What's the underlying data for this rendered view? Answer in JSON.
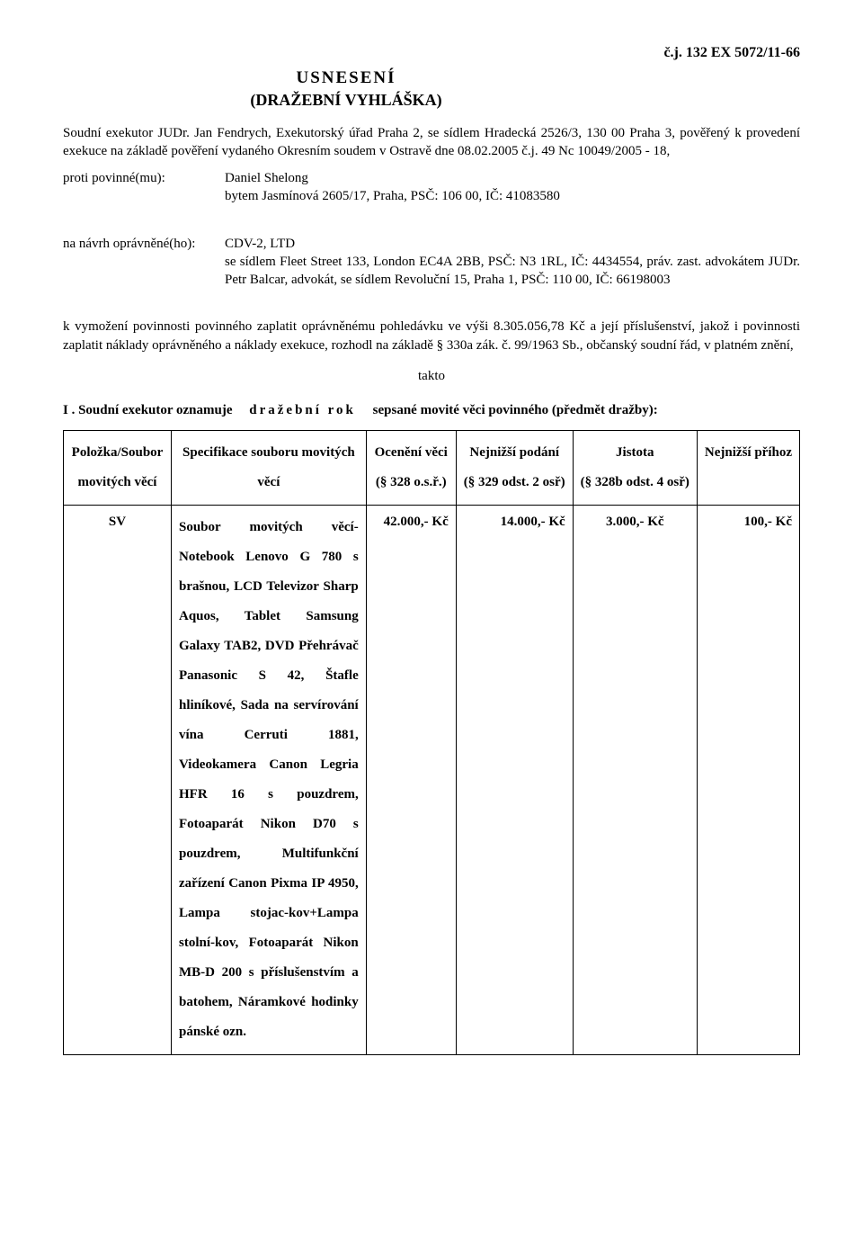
{
  "caseNumber": "č.j. 132 EX 5072/11-66",
  "titleMain": "USNESENÍ",
  "titleSub": "(DRAŽEBNÍ VYHLÁŠKA)",
  "introPara": "Soudní exekutor JUDr. Jan Fendrych, Exekutorský úřad Praha 2, se sídlem Hradecká 2526/3, 130 00 Praha 3, pověřený k provedení exekuce na základě pověření vydaného Okresním soudem v Ostravě dne 08.02.2005 č.j. 49 Nc 10049/2005 - 18,",
  "obligLabel": "proti povinné(mu):",
  "obligValue": "Daniel Shelong\nbytem Jasmínová 2605/17, Praha, PSČ: 106 00, IČ: 41083580",
  "credLabel": "na návrh oprávněné(ho):",
  "credValue": "CDV-2, LTD\nse sídlem Fleet Street 133, London EC4A 2BB, PSČ: N3 1RL, IČ: 4434554, práv. zast. advokátem JUDr. Petr Balcar, advokát, se sídlem Revoluční 15, Praha 1, PSČ: 110 00, IČ: 66198003",
  "claimPara": "k vymožení povinnosti povinného zaplatit oprávněnému pohledávku ve výši 8.305.056,78 Kč a její příslušenství, jakož i povinnosti zaplatit náklady oprávněného a náklady exekuce, rozhodl na základě            § 330a zák. č. 99/1963 Sb., občanský soudní řád, v platném znění,",
  "takto": "takto",
  "sectionI_prefix": "I . Soudní exekutor oznamuje",
  "sectionI_spaced": "dražební rok",
  "sectionI_suffix": "sepsané movité věci povinného (předmět dražby):",
  "tableHeaders": {
    "col1": "Položka/Soubor movitých věcí",
    "col2": "Specifikace souboru movitých věcí",
    "col3": "Ocenění věci\n(§ 328 o.s.ř.)",
    "col4": "Nejnižší podání\n(§ 329 odst. 2 osř)",
    "col5": "Jistota\n(§ 328b odst. 4 osř)",
    "col6": "Nejnižší příhoz"
  },
  "tableRow": {
    "id": "SV",
    "spec": "Soubor movitých věcí-Notebook Lenovo G 780 s brašnou, LCD Televizor Sharp Aquos, Tablet Samsung Galaxy TAB2, DVD Přehrávač Panasonic S 42, Štafle hliníkové, Sada na servírování vína Cerruti 1881, Videokamera Canon Legria HFR 16 s pouzdrem, Fotoaparát Nikon D70 s pouzdrem, Multifunkční zařízení Canon Pixma IP 4950, Lampa stojac-kov+Lampa stolní-kov, Fotoaparát Nikon MB-D 200 s příslušenstvím a batohem, Náramkové hodinky pánské ozn.",
    "valuation": "42.000,- Kč",
    "minBid": "14.000,- Kč",
    "deposit": "3.000,- Kč",
    "minRaise": "100,- Kč"
  }
}
